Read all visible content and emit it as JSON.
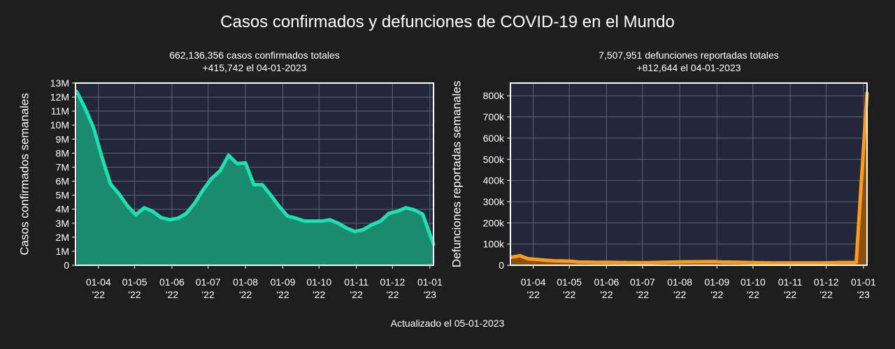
{
  "page": {
    "title": "Casos confirmados y defunciones de COVID-19 en el Mundo",
    "footer": "Actualizado el 05-01-2023"
  },
  "chart_data": [
    {
      "type": "area",
      "subtitle_line1": "662,136,356 casos confirmados totales",
      "subtitle_line2": "+415,742 el 04-01-2023",
      "ylabel": "Casos confirmados semanales",
      "color": "#1fe0b0",
      "fill": "#1a8a70",
      "ylim": [
        0,
        13000000
      ],
      "yticks": [
        {
          "v": 0,
          "label": "0"
        },
        {
          "v": 1000000,
          "label": "1M"
        },
        {
          "v": 2000000,
          "label": "2M"
        },
        {
          "v": 3000000,
          "label": "3M"
        },
        {
          "v": 4000000,
          "label": "4M"
        },
        {
          "v": 5000000,
          "label": "5M"
        },
        {
          "v": 6000000,
          "label": "6M"
        },
        {
          "v": 7000000,
          "label": "7M"
        },
        {
          "v": 8000000,
          "label": "8M"
        },
        {
          "v": 9000000,
          "label": "9M"
        },
        {
          "v": 10000000,
          "label": "10M"
        },
        {
          "v": 11000000,
          "label": "11M"
        },
        {
          "v": 12000000,
          "label": "12M"
        },
        {
          "v": 13000000,
          "label": "13M"
        }
      ],
      "xlim": [
        "2022-03-13",
        "2023-01-04"
      ],
      "xticks": [
        {
          "date": "2022-04-01",
          "line1": "01-04",
          "line2": "'22"
        },
        {
          "date": "2022-05-01",
          "line1": "01-05",
          "line2": "'22"
        },
        {
          "date": "2022-06-01",
          "line1": "01-06",
          "line2": "'22"
        },
        {
          "date": "2022-07-01",
          "line1": "01-07",
          "line2": "'22"
        },
        {
          "date": "2022-08-01",
          "line1": "01-08",
          "line2": "'22"
        },
        {
          "date": "2022-09-01",
          "line1": "01-09",
          "line2": "'22"
        },
        {
          "date": "2022-10-01",
          "line1": "01-10",
          "line2": "'22"
        },
        {
          "date": "2022-11-01",
          "line1": "01-11",
          "line2": "'22"
        },
        {
          "date": "2022-12-01",
          "line1": "01-12",
          "line2": "'22"
        },
        {
          "date": "2023-01-01",
          "line1": "01-01",
          "line2": "'23"
        }
      ],
      "points": [
        [
          "2022-03-14",
          12400000
        ],
        [
          "2022-03-21",
          11200000
        ],
        [
          "2022-03-28",
          9800000
        ],
        [
          "2022-04-04",
          7700000
        ],
        [
          "2022-04-11",
          5800000
        ],
        [
          "2022-04-18",
          5100000
        ],
        [
          "2022-04-25",
          4250000
        ],
        [
          "2022-05-02",
          3600000
        ],
        [
          "2022-05-09",
          4100000
        ],
        [
          "2022-05-16",
          3850000
        ],
        [
          "2022-05-23",
          3400000
        ],
        [
          "2022-05-30",
          3250000
        ],
        [
          "2022-06-06",
          3350000
        ],
        [
          "2022-06-13",
          3700000
        ],
        [
          "2022-06-20",
          4450000
        ],
        [
          "2022-06-27",
          5400000
        ],
        [
          "2022-07-04",
          6200000
        ],
        [
          "2022-07-11",
          6750000
        ],
        [
          "2022-07-18",
          7850000
        ],
        [
          "2022-07-25",
          7250000
        ],
        [
          "2022-08-01",
          7300000
        ],
        [
          "2022-08-08",
          5750000
        ],
        [
          "2022-08-15",
          5750000
        ],
        [
          "2022-08-22",
          5000000
        ],
        [
          "2022-08-29",
          4200000
        ],
        [
          "2022-09-05",
          3500000
        ],
        [
          "2022-09-12",
          3350000
        ],
        [
          "2022-09-19",
          3150000
        ],
        [
          "2022-09-26",
          3150000
        ],
        [
          "2022-10-03",
          3150000
        ],
        [
          "2022-10-10",
          3250000
        ],
        [
          "2022-10-17",
          3000000
        ],
        [
          "2022-10-24",
          2650000
        ],
        [
          "2022-10-31",
          2400000
        ],
        [
          "2022-11-07",
          2550000
        ],
        [
          "2022-11-14",
          2900000
        ],
        [
          "2022-11-21",
          3150000
        ],
        [
          "2022-11-28",
          3700000
        ],
        [
          "2022-12-05",
          3850000
        ],
        [
          "2022-12-12",
          4100000
        ],
        [
          "2022-12-19",
          3950000
        ],
        [
          "2022-12-26",
          3650000
        ],
        [
          "2023-01-04",
          1500000
        ]
      ]
    },
    {
      "type": "area",
      "subtitle_line1": "7,507,951 defunciones reportadas totales",
      "subtitle_line2": "+812,644 el 04-01-2023",
      "ylabel": "Defunciones reportadas semanales",
      "color": "#ff9a1a",
      "fill": "#8a5010",
      "ylim": [
        0,
        860000
      ],
      "yticks": [
        {
          "v": 0,
          "label": "0"
        },
        {
          "v": 100000,
          "label": "100k"
        },
        {
          "v": 200000,
          "label": "200k"
        },
        {
          "v": 300000,
          "label": "300k"
        },
        {
          "v": 400000,
          "label": "400k"
        },
        {
          "v": 500000,
          "label": "500k"
        },
        {
          "v": 600000,
          "label": "600k"
        },
        {
          "v": 700000,
          "label": "700k"
        },
        {
          "v": 800000,
          "label": "800k"
        }
      ],
      "xlim": [
        "2022-03-13",
        "2023-01-04"
      ],
      "xticks": [
        {
          "date": "2022-04-01",
          "line1": "01-04",
          "line2": "'22"
        },
        {
          "date": "2022-05-01",
          "line1": "01-05",
          "line2": "'22"
        },
        {
          "date": "2022-06-01",
          "line1": "01-06",
          "line2": "'22"
        },
        {
          "date": "2022-07-01",
          "line1": "01-07",
          "line2": "'22"
        },
        {
          "date": "2022-08-01",
          "line1": "01-08",
          "line2": "'22"
        },
        {
          "date": "2022-09-01",
          "line1": "01-09",
          "line2": "'22"
        },
        {
          "date": "2022-10-01",
          "line1": "01-10",
          "line2": "'22"
        },
        {
          "date": "2022-11-01",
          "line1": "01-11",
          "line2": "'22"
        },
        {
          "date": "2022-12-01",
          "line1": "01-12",
          "line2": "'22"
        },
        {
          "date": "2023-01-01",
          "line1": "01-01",
          "line2": "'23"
        }
      ],
      "points": [
        [
          "2022-03-14",
          38000
        ],
        [
          "2022-03-21",
          45000
        ],
        [
          "2022-03-28",
          30000
        ],
        [
          "2022-04-04",
          27000
        ],
        [
          "2022-04-11",
          24000
        ],
        [
          "2022-04-18",
          21000
        ],
        [
          "2022-04-25",
          20000
        ],
        [
          "2022-05-02",
          19000
        ],
        [
          "2022-05-09",
          15000
        ],
        [
          "2022-05-23",
          14000
        ],
        [
          "2022-06-06",
          13500
        ],
        [
          "2022-06-20",
          12500
        ],
        [
          "2022-07-04",
          12000
        ],
        [
          "2022-07-18",
          14000
        ],
        [
          "2022-08-01",
          15500
        ],
        [
          "2022-08-15",
          16500
        ],
        [
          "2022-08-29",
          17000
        ],
        [
          "2022-09-05",
          15000
        ],
        [
          "2022-09-19",
          14000
        ],
        [
          "2022-10-03",
          12000
        ],
        [
          "2022-10-17",
          11000
        ],
        [
          "2022-10-31",
          11000
        ],
        [
          "2022-11-14",
          11000
        ],
        [
          "2022-11-28",
          11000
        ],
        [
          "2022-12-12",
          13000
        ],
        [
          "2022-12-26",
          13000
        ],
        [
          "2023-01-04",
          812644
        ]
      ]
    }
  ]
}
